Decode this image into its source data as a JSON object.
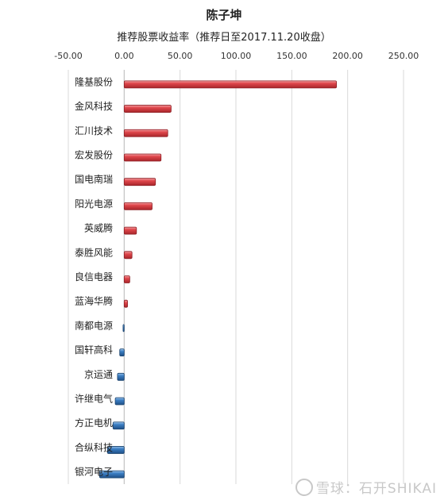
{
  "chart_data": {
    "type": "bar",
    "orientation": "horizontal",
    "title": "陈子坤",
    "subtitle": "推荐股票收益率（推荐日至2017.11.20收盘）",
    "xlim": [
      -50,
      250
    ],
    "x_ticks": [
      "-50.00",
      "0.00",
      "50.00",
      "100.00",
      "150.00",
      "200.00",
      "250.00"
    ],
    "x_tick_values": [
      -50,
      0,
      50,
      100,
      150,
      200,
      250
    ],
    "grid": true,
    "categories": [
      "隆基股份",
      "金风科技",
      "汇川技术",
      "宏发股份",
      "国电南瑞",
      "阳光电源",
      "英威腾",
      "泰胜风能",
      "良信电器",
      "蓝海华腾",
      "南都电源",
      "国轩高科",
      "京运通",
      "许继电气",
      "方正电机",
      "合纵科技",
      "银河电子"
    ],
    "values": [
      190,
      42,
      39,
      33,
      28,
      25,
      11,
      7,
      5,
      3,
      -1,
      -4,
      -6,
      -8,
      -10,
      -15,
      -22
    ],
    "colors": {
      "positive": "#e0474c",
      "negative": "#3c7fc4"
    }
  },
  "watermark": {
    "text": "雪球：石开SHIKAI"
  }
}
